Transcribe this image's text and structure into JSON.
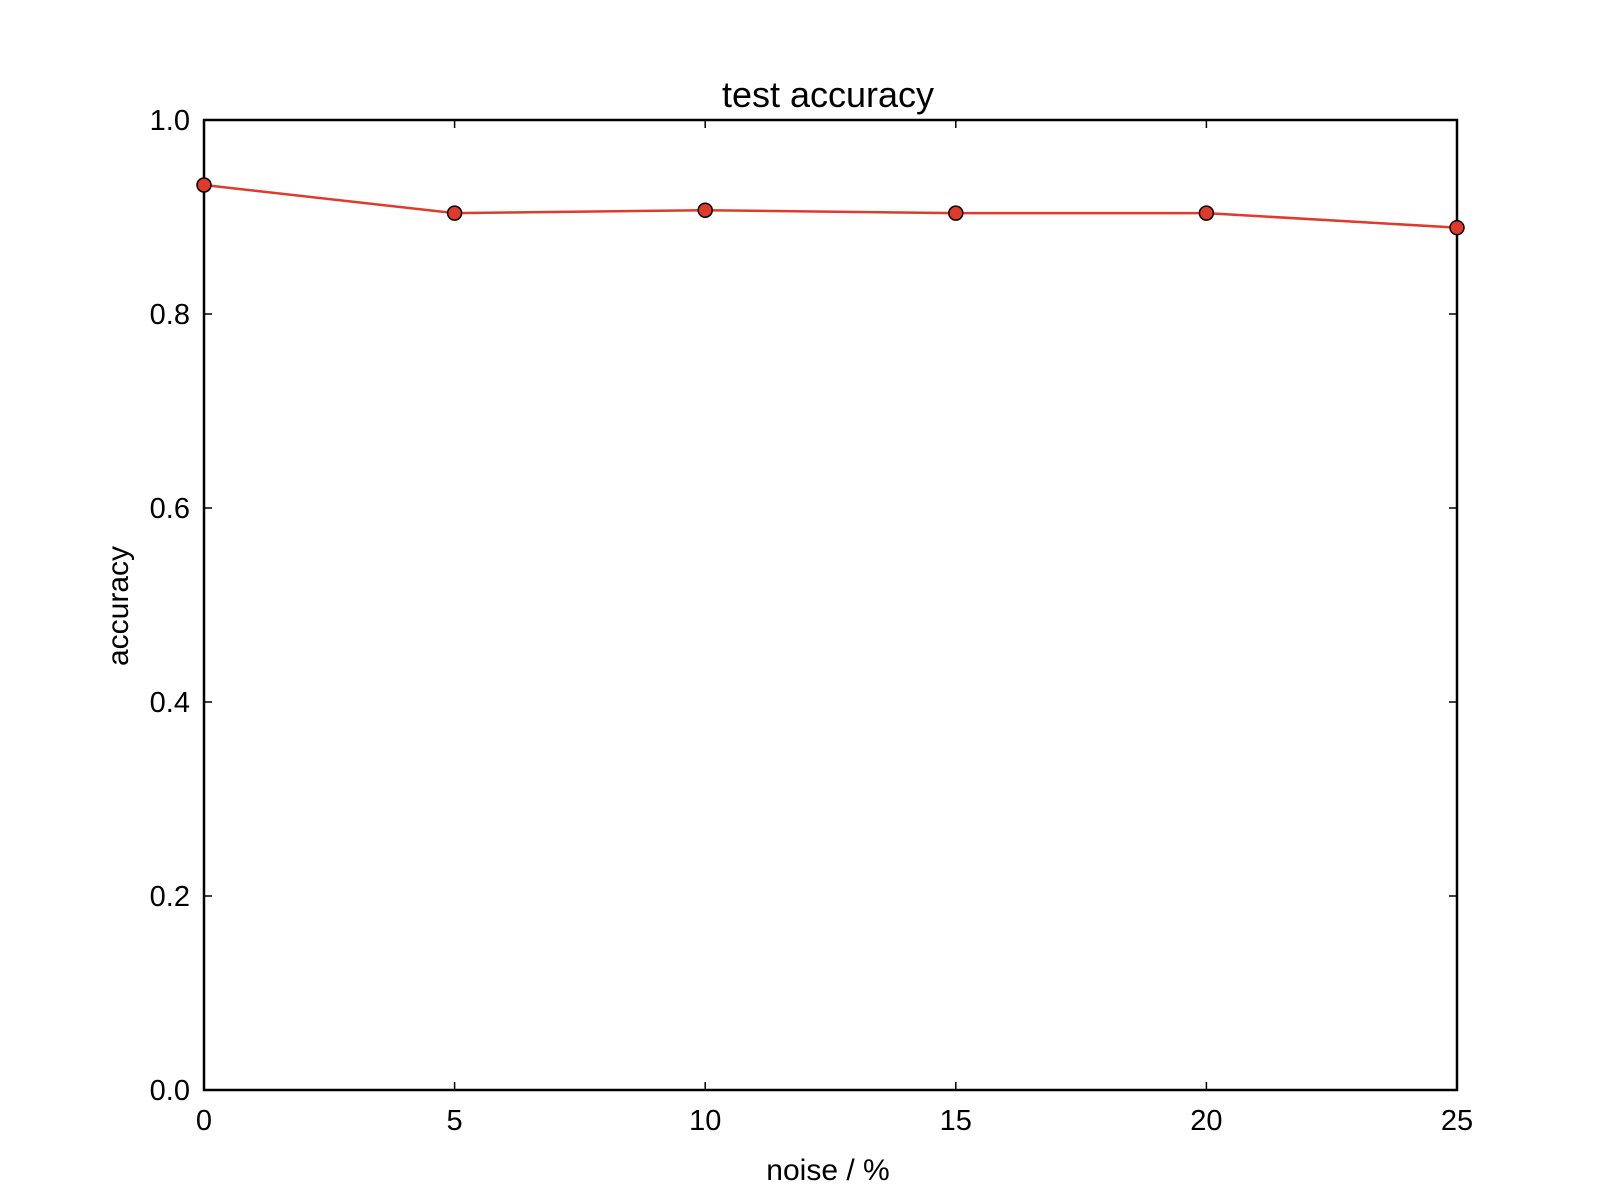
{
  "chart_data": {
    "type": "line",
    "title": "test accuracy",
    "xlabel": "noise / %",
    "ylabel": "accuracy",
    "xlim": [
      0,
      25
    ],
    "ylim": [
      0.0,
      1.0
    ],
    "xticks": [
      "0",
      "5",
      "10",
      "15",
      "20",
      "25"
    ],
    "yticks": [
      "0.0",
      "0.2",
      "0.4",
      "0.6",
      "0.8",
      "1.0"
    ],
    "grid": false,
    "series": [
      {
        "x": [
          0,
          5,
          10,
          15,
          20,
          25
        ],
        "values": [
          0.933,
          0.904,
          0.907,
          0.904,
          0.904,
          0.889
        ],
        "color": "#e03a2a",
        "marker": "circle"
      }
    ]
  }
}
